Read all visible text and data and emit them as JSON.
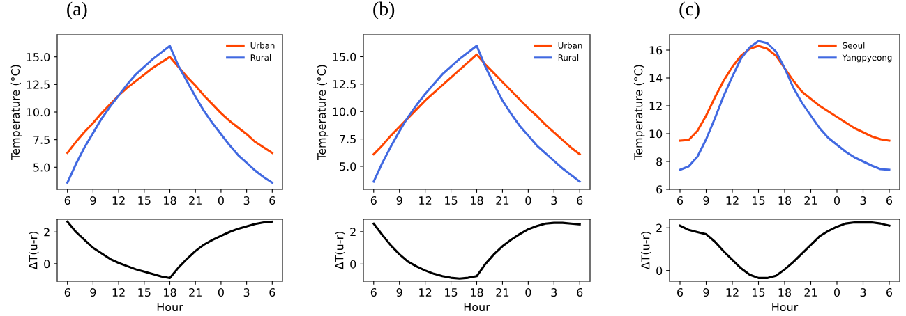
{
  "chart_data": [
    {
      "type": "line",
      "title": "(a)",
      "ylabel": "Temperature (°C)",
      "categories": [
        "6",
        null,
        null,
        "9",
        null,
        null,
        "12",
        null,
        null,
        "15",
        null,
        null,
        "18",
        null,
        null,
        "21",
        null,
        null,
        "0",
        null,
        null,
        "3",
        null,
        null,
        "6"
      ],
      "series": [
        {
          "name": "Urban",
          "color": "#ff4500",
          "values": [
            6.3,
            7.3,
            8.2,
            9.0,
            9.9,
            10.7,
            11.5,
            12.2,
            12.8,
            13.4,
            14.0,
            14.5,
            15.0,
            14.1,
            13.2,
            12.4,
            11.5,
            10.7,
            9.9,
            9.2,
            8.6,
            8.0,
            7.3,
            6.8,
            6.3
          ]
        },
        {
          "name": "Rural",
          "color": "#4169e1",
          "values": [
            3.6,
            5.3,
            6.8,
            8.1,
            9.4,
            10.5,
            11.5,
            12.5,
            13.4,
            14.1,
            14.8,
            15.4,
            16.0,
            14.2,
            12.8,
            11.4,
            10.1,
            9.0,
            8.0,
            7.0,
            6.1,
            5.4,
            4.7,
            4.1,
            3.6
          ]
        }
      ],
      "ylim": [
        3.0,
        17.0
      ],
      "yticks": [
        {
          "value": 5,
          "label": "5.0"
        },
        {
          "value": 7.5,
          "label": "7.5"
        },
        {
          "value": 10,
          "label": "10.0"
        },
        {
          "value": 12.5,
          "label": "12.5"
        },
        {
          "value": 15,
          "label": "15.0"
        }
      ],
      "legend": "top right",
      "grid": false
    },
    {
      "type": "line",
      "title": "(b)",
      "ylabel": "Temperature (°C)",
      "categories": [
        "6",
        null,
        null,
        "9",
        null,
        null,
        "12",
        null,
        null,
        "15",
        null,
        null,
        "18",
        null,
        null,
        "21",
        null,
        null,
        "0",
        null,
        null,
        "3",
        null,
        null,
        "6"
      ],
      "series": [
        {
          "name": "Urban",
          "color": "#ff4500",
          "values": [
            6.1,
            6.9,
            7.8,
            8.6,
            9.4,
            10.2,
            11.0,
            11.7,
            12.4,
            13.1,
            13.8,
            14.5,
            15.2,
            14.3,
            13.5,
            12.7,
            11.9,
            11.1,
            10.3,
            9.6,
            8.8,
            8.1,
            7.4,
            6.7,
            6.1
          ]
        },
        {
          "name": "Rural",
          "color": "#4169e1",
          "values": [
            3.6,
            5.3,
            6.8,
            8.2,
            9.5,
            10.6,
            11.6,
            12.5,
            13.4,
            14.1,
            14.8,
            15.4,
            16.0,
            14.1,
            12.5,
            11.0,
            9.8,
            8.7,
            7.8,
            6.9,
            6.2,
            5.5,
            4.8,
            4.2,
            3.6
          ]
        }
      ],
      "ylim": [
        2.9,
        17.0
      ],
      "yticks": [
        {
          "value": 5,
          "label": "5.0"
        },
        {
          "value": 7.5,
          "label": "7.5"
        },
        {
          "value": 10,
          "label": "10.0"
        },
        {
          "value": 12.5,
          "label": "12.5"
        },
        {
          "value": 15,
          "label": "15.0"
        }
      ],
      "legend": "top right",
      "grid": false
    },
    {
      "type": "line",
      "title": "(c)",
      "ylabel": "Temperature (°C)",
      "categories": [
        "6",
        null,
        null,
        "9",
        null,
        null,
        "12",
        null,
        null,
        "15",
        null,
        null,
        "18",
        null,
        null,
        "21",
        null,
        null,
        "0",
        null,
        null,
        "3",
        null,
        null,
        "6"
      ],
      "series": [
        {
          "name": "Seoul",
          "color": "#ff4500",
          "values": [
            9.5,
            9.55,
            10.2,
            11.3,
            12.6,
            13.8,
            14.8,
            15.6,
            16.1,
            16.3,
            16.1,
            15.6,
            14.7,
            13.8,
            13.0,
            12.5,
            12.0,
            11.6,
            11.2,
            10.8,
            10.4,
            10.1,
            9.8,
            9.6,
            9.5
          ]
        },
        {
          "name": "Yangpyeong",
          "color": "#4169e1",
          "values": [
            7.4,
            7.65,
            8.35,
            9.6,
            11.1,
            12.7,
            14.1,
            15.4,
            16.2,
            16.65,
            16.5,
            15.9,
            14.7,
            13.3,
            12.2,
            11.3,
            10.4,
            9.7,
            9.2,
            8.7,
            8.3,
            8.0,
            7.7,
            7.45,
            7.4
          ]
        }
      ],
      "ylim": [
        6,
        17.1
      ],
      "yticks": [
        6,
        8,
        10,
        12,
        14,
        16
      ],
      "legend": "top right",
      "grid": false
    },
    {
      "type": "line",
      "xlabel": "Hour",
      "ylabel": "ΔT(u-r)",
      "categories": [
        "6",
        null,
        null,
        "9",
        null,
        null,
        "12",
        null,
        null,
        "15",
        null,
        null,
        "18",
        null,
        null,
        "21",
        null,
        null,
        "0",
        null,
        null,
        "3",
        null,
        null,
        "6"
      ],
      "series": [
        {
          "color": "#000000",
          "values": [
            2.65,
            2.0,
            1.5,
            1.0,
            0.65,
            0.3,
            0.05,
            -0.15,
            -0.35,
            -0.5,
            -0.65,
            -0.8,
            -0.9,
            -0.25,
            0.3,
            0.8,
            1.2,
            1.5,
            1.75,
            2.0,
            2.2,
            2.35,
            2.5,
            2.6,
            2.65
          ]
        }
      ],
      "ylim": [
        -1.1,
        2.8
      ],
      "yticks": [
        0,
        2
      ],
      "grid": false
    },
    {
      "type": "line",
      "xlabel": "Hour",
      "ylabel": "ΔT(u-r)",
      "categories": [
        "6",
        null,
        null,
        "9",
        null,
        null,
        "12",
        null,
        null,
        "15",
        null,
        null,
        "18",
        null,
        null,
        "21",
        null,
        null,
        "0",
        null,
        null,
        "3",
        null,
        null,
        "6"
      ],
      "series": [
        {
          "color": "#000000",
          "values": [
            2.5,
            1.8,
            1.15,
            0.6,
            0.15,
            -0.15,
            -0.4,
            -0.6,
            -0.75,
            -0.85,
            -0.9,
            -0.85,
            -0.75,
            0.0,
            0.6,
            1.1,
            1.5,
            1.85,
            2.15,
            2.35,
            2.5,
            2.55,
            2.55,
            2.5,
            2.45
          ]
        }
      ],
      "ylim": [
        -1.06,
        2.77
      ],
      "yticks": [
        0,
        2
      ],
      "grid": false
    },
    {
      "type": "line",
      "xlabel": "Hour",
      "ylabel": "ΔT(u-r)",
      "categories": [
        "6",
        null,
        null,
        "9",
        null,
        null,
        "12",
        null,
        null,
        "15",
        null,
        null,
        "18",
        null,
        null,
        "21",
        null,
        null,
        "0",
        null,
        null,
        "3",
        null,
        null,
        "6"
      ],
      "series": [
        {
          "color": "#000000",
          "values": [
            2.1,
            1.9,
            1.8,
            1.7,
            1.35,
            0.9,
            0.5,
            0.1,
            -0.2,
            -0.35,
            -0.35,
            -0.25,
            0.05,
            0.4,
            0.8,
            1.2,
            1.6,
            1.85,
            2.05,
            2.2,
            2.25,
            2.25,
            2.25,
            2.2,
            2.1
          ]
        }
      ],
      "ylim": [
        -0.5,
        2.4
      ],
      "yticks": [
        0,
        2
      ],
      "grid": false
    }
  ]
}
